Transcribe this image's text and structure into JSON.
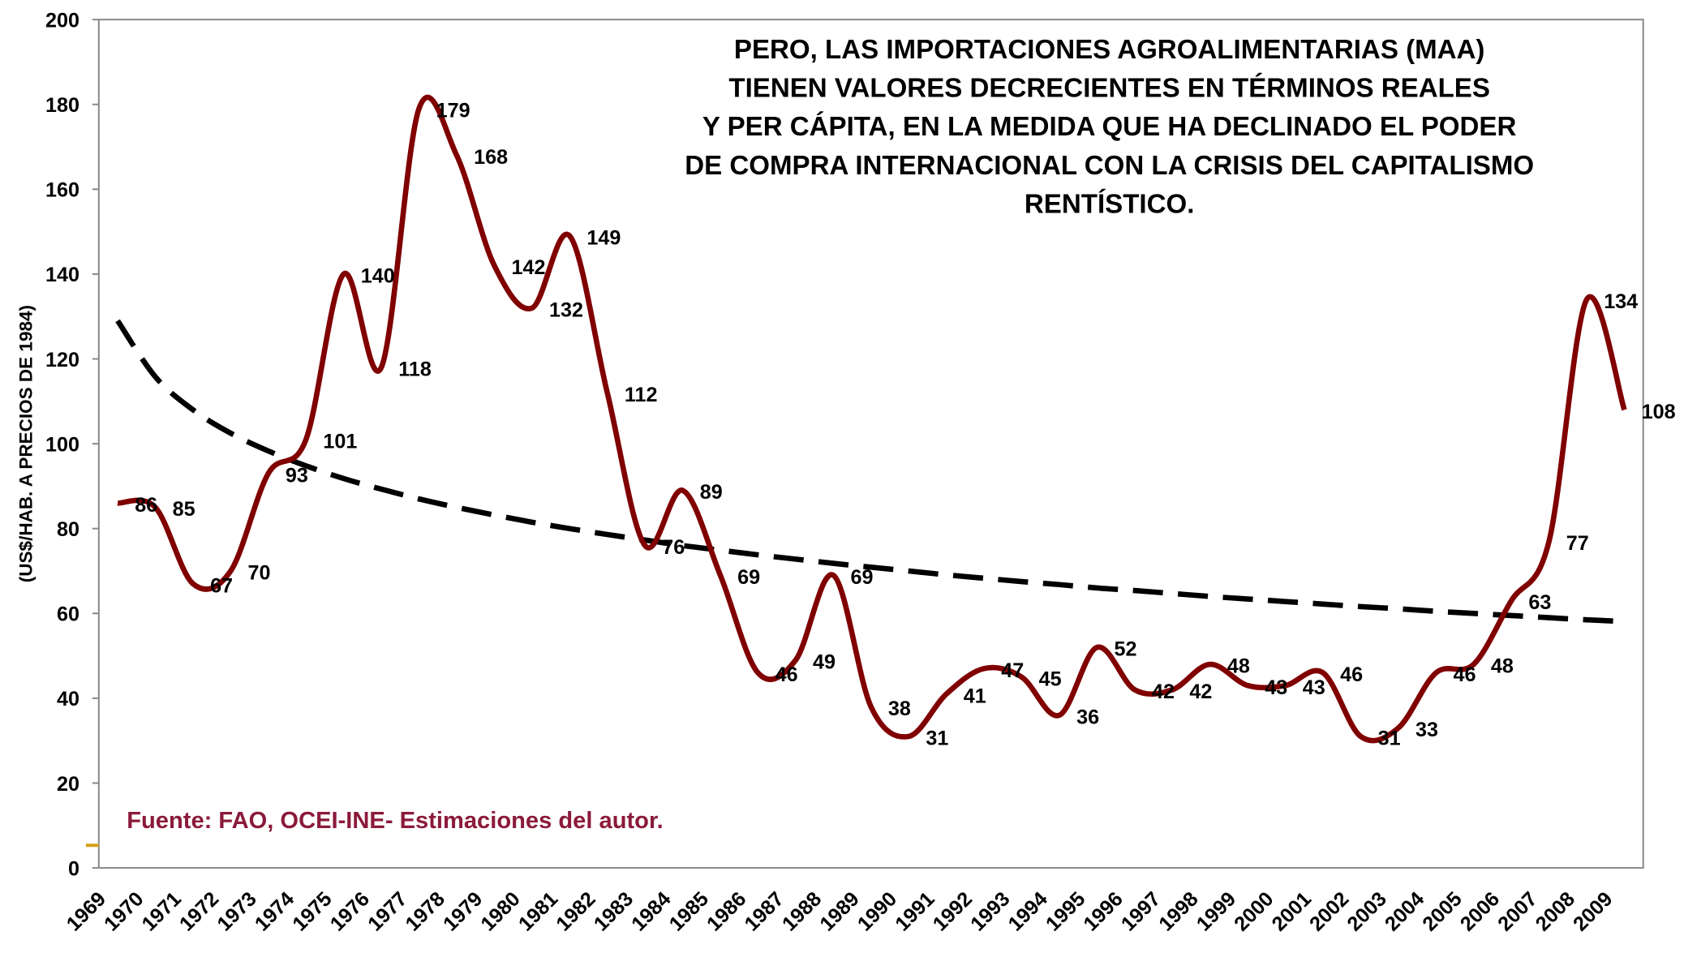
{
  "chart_data": {
    "type": "line",
    "title": [
      "PERO, LAS IMPORTACIONES AGROALIMENTARIAS (MAA)",
      "TIENEN VALORES DECRECIENTES EN TÉRMINOS REALES",
      "Y PER CÁPITA, EN LA MEDIDA QUE HA DECLINADO EL PODER",
      "DE COMPRA INTERNACIONAL CON LA CRISIS DEL CAPITALISMO",
      "RENTÍSTICO."
    ],
    "ylabel": "(US$/HAB. A PRECIOS DE 1984)",
    "source": "Fuente: FAO, OCEI-INE- Estimaciones del autor.",
    "categories": [
      "1969",
      "1970",
      "1971",
      "1972",
      "1973",
      "1974",
      "1975",
      "1976",
      "1977",
      "1978",
      "1979",
      "1980",
      "1981",
      "1982",
      "1983",
      "1984",
      "1985",
      "1986",
      "1987",
      "1988",
      "1989",
      "1990",
      "1991",
      "1992",
      "1993",
      "1994",
      "1995",
      "1996",
      "1997",
      "1998",
      "1999",
      "2000",
      "2001",
      "2002",
      "2003",
      "2004",
      "2005",
      "2006",
      "2007",
      "2008",
      "2009"
    ],
    "values": [
      86,
      85,
      67,
      70,
      93,
      101,
      140,
      118,
      179,
      168,
      142,
      132,
      149,
      112,
      76,
      89,
      69,
      46,
      49,
      69,
      38,
      31,
      41,
      47,
      45,
      36,
      52,
      42,
      42,
      48,
      43,
      43,
      46,
      31,
      33,
      46,
      48,
      63,
      77,
      134,
      108
    ],
    "color": "#800000",
    "trend": {
      "color": "#000000",
      "values": [
        129,
        115.8,
        108.0,
        102.5,
        98.3,
        94.8,
        91.8,
        89.3,
        87.0,
        85.0,
        83.2,
        81.5,
        80.0,
        78.6,
        77.3,
        76.0,
        74.9,
        73.8,
        72.8,
        71.8,
        70.9,
        70.0,
        69.1,
        68.3,
        67.5,
        66.8,
        66.0,
        65.4,
        64.7,
        64.0,
        63.4,
        62.8,
        62.2,
        61.6,
        61.1,
        60.5,
        60.0,
        59.5,
        59.0,
        58.5,
        58.1
      ]
    },
    "ylim": [
      0,
      200
    ],
    "yticks": [
      0,
      20,
      40,
      60,
      80,
      100,
      120,
      140,
      160,
      180,
      200
    ],
    "grid": false
  }
}
